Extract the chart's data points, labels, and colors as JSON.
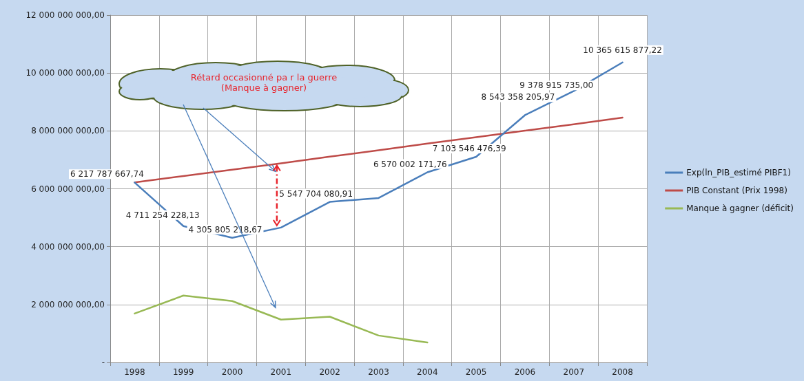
{
  "chart_data": {
    "type": "line",
    "categories": [
      "1998",
      "1999",
      "2000",
      "2001",
      "2002",
      "2003",
      "2004",
      "2005",
      "2006",
      "2007",
      "2008"
    ],
    "series": [
      {
        "name": "Exp(ln_PIB_estimé PIBF1)",
        "color": "#4a7ebb",
        "values": [
          6217787667.74,
          4711254228.13,
          4305805218.67,
          4660000000,
          5547704080.91,
          5680000000,
          6570002171.76,
          7103546476.39,
          8543358205.97,
          9378915735.0,
          10365615877.22
        ],
        "value_labels": [
          "6 217 787 667,74",
          "4 711 254 228,13",
          "4 305 805 218,67",
          null,
          "5 547 704 080,91",
          null,
          "6 570 002 171,76",
          "7 103 546 476,39",
          "8 543 358 205,97",
          "9 378 915 735,00",
          "10 365 615 877,22"
        ]
      },
      {
        "name": "PIB Constant (Prix 1998)",
        "color": "#be4b48",
        "values": [
          6220000000,
          6440000000,
          6660000000,
          6880000000,
          7110000000,
          7330000000,
          7560000000,
          7780000000,
          8010000000,
          8230000000,
          8460000000
        ]
      },
      {
        "name": "Manque à gagner (déficit)",
        "color": "#98b954",
        "values": [
          1690000000,
          2310000000,
          2120000000,
          1480000000,
          1580000000,
          930000000,
          690000000,
          null,
          null,
          null,
          null
        ]
      }
    ],
    "ylim": [
      0,
      12000000000
    ],
    "yticks": [
      {
        "value": 0,
        "label": "-"
      },
      {
        "value": 2000000000,
        "label": "2 000 000 000,00"
      },
      {
        "value": 4000000000,
        "label": "4 000 000 000,00"
      },
      {
        "value": 6000000000,
        "label": "6 000 000 000,00"
      },
      {
        "value": 8000000000,
        "label": "8 000 000 000,00"
      },
      {
        "value": 10000000000,
        "label": "10 000 000 000,00"
      },
      {
        "value": 12000000000,
        "label": "12 000 000 000,00"
      }
    ],
    "annotations": [
      "Rétard occasionné pa r la guerre\n(Manque à gagner)"
    ],
    "grid": true,
    "legend": "right",
    "marker": "none",
    "line_style": "solid"
  }
}
